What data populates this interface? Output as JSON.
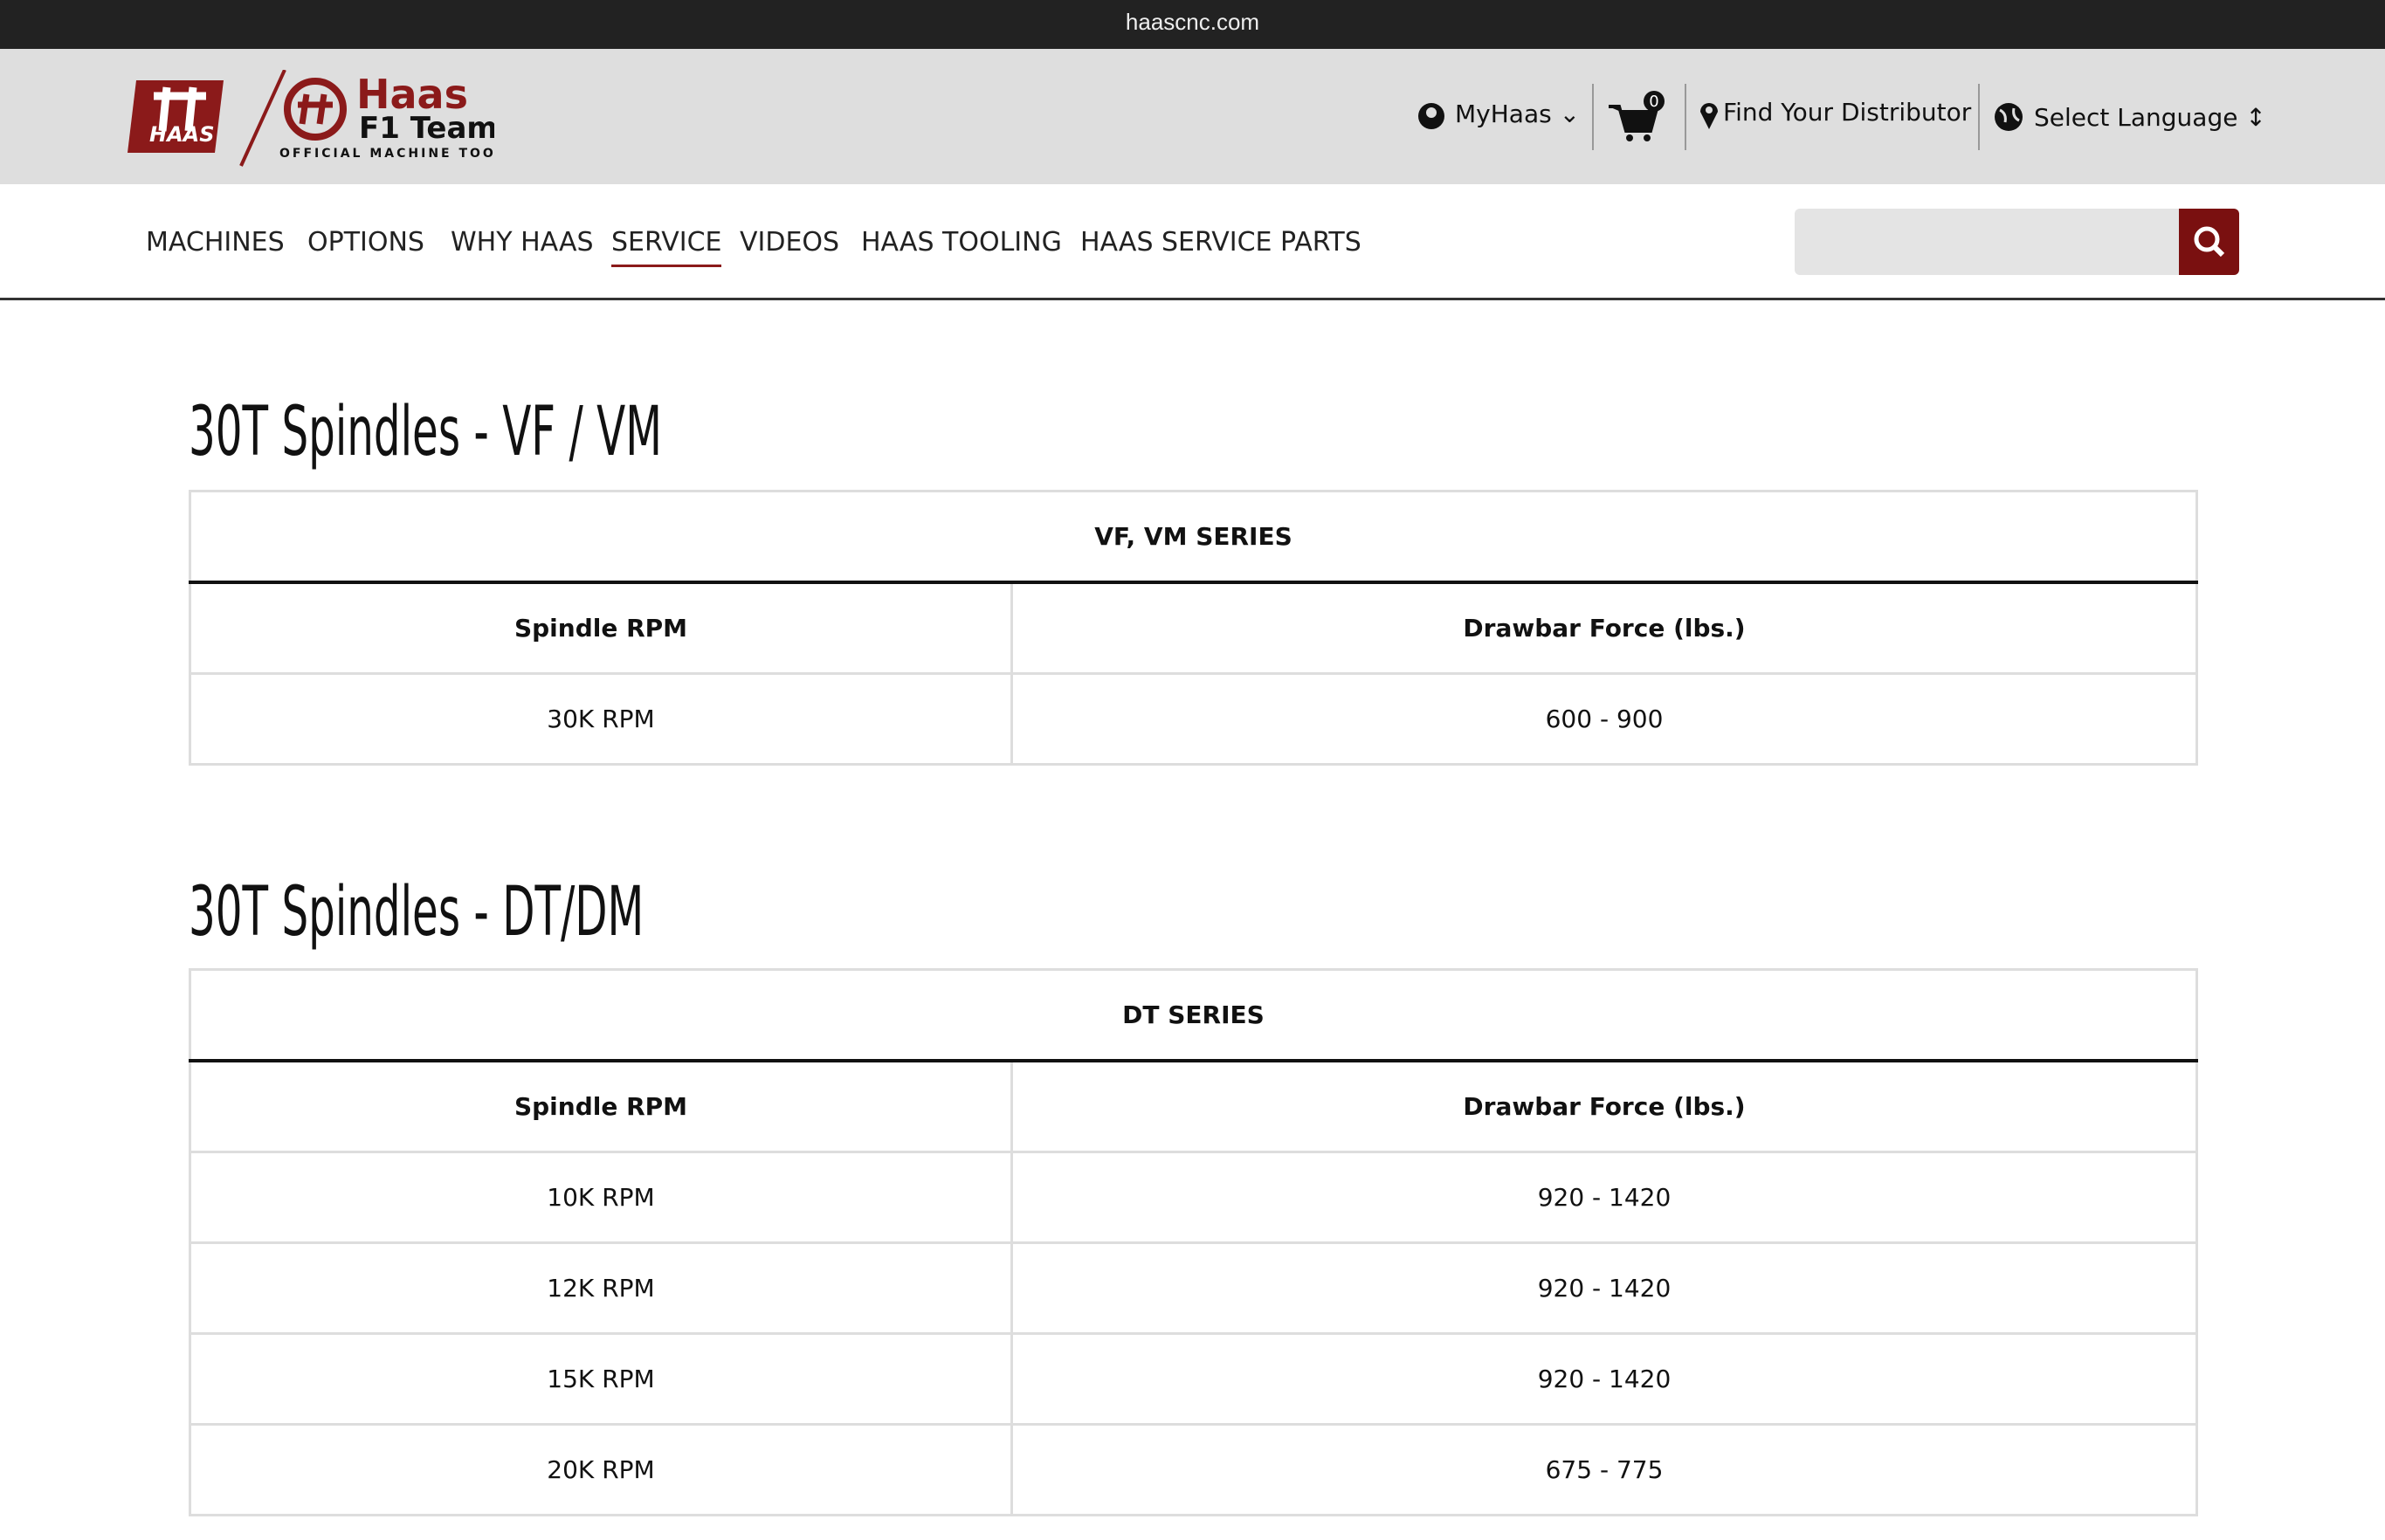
{
  "browser": {
    "url": "haascnc.com"
  },
  "header": {
    "logo_brand": "Haas",
    "logo_team": "F1 Team",
    "logo_tagline": "OFFICIAL MACHINE TOOL",
    "logo_badge": "HAAS",
    "account": "MyHaas",
    "cart_count": "0",
    "distributor": "Find Your Distributor",
    "language": "Select Language"
  },
  "nav": {
    "items": [
      "MACHINES",
      "OPTIONS",
      "WHY HAAS",
      "SERVICE",
      "VIDEOS",
      "HAAS TOOLING",
      "HAAS SERVICE PARTS"
    ],
    "active": "SERVICE"
  },
  "sections": [
    {
      "title": "30T Spindles - VF / VM",
      "table": {
        "caption": "VF, VM SERIES",
        "columns": [
          "Spindle RPM",
          "Drawbar Force (lbs.)"
        ],
        "rows": [
          [
            "30K RPM",
            "600 - 900"
          ]
        ]
      }
    },
    {
      "title": "30T Spindles - DT/DM",
      "table": {
        "caption": "DT SERIES",
        "columns": [
          "Spindle RPM",
          "Drawbar Force (lbs.)"
        ],
        "rows": [
          [
            "10K RPM",
            "920 - 1420"
          ],
          [
            "12K RPM",
            "920 - 1420"
          ],
          [
            "15K RPM",
            "920 - 1420"
          ],
          [
            "20K RPM",
            "675 - 775"
          ]
        ]
      }
    }
  ]
}
